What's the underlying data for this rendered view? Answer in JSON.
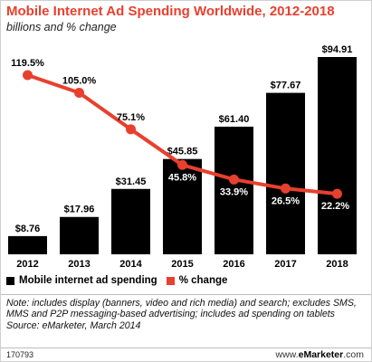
{
  "header": {
    "title": "Mobile Internet Ad Spending Worldwide, 2012-2018",
    "subtitle": "billions and % change"
  },
  "legend": {
    "bar_label": "Mobile internet ad spending",
    "line_label": "% change"
  },
  "note": "Note: includes display (banners, video and rich media) and search; excludes SMS, MMS and P2P messaging-based advertising; includes ad spending on tablets",
  "source": "Source: eMarketer, March 2014",
  "chart_id": "170793",
  "brand": {
    "prefix": "www.",
    "name": "eMarketer",
    "suffix": ".com"
  },
  "colors": {
    "bar": "#000000",
    "line": "#e8402e",
    "title": "#e8402e"
  },
  "chart_data": {
    "type": "bar",
    "title": "Mobile Internet Ad Spending Worldwide, 2012-2018",
    "subtitle": "billions and % change",
    "categories": [
      "2012",
      "2013",
      "2014",
      "2015",
      "2016",
      "2017",
      "2018"
    ],
    "series": [
      {
        "name": "Mobile internet ad spending",
        "type": "bar",
        "values": [
          8.76,
          17.96,
          31.45,
          45.85,
          61.4,
          77.67,
          94.91
        ],
        "labels": [
          "$8.76",
          "$17.96",
          "$31.45",
          "$45.85",
          "$61.40",
          "$77.67",
          "$94.91"
        ]
      },
      {
        "name": "% change",
        "type": "line",
        "values": [
          119.5,
          105.0,
          75.1,
          45.8,
          33.9,
          26.5,
          22.2
        ],
        "labels": [
          "119.5%",
          "105.0%",
          "75.1%",
          "45.8%",
          "33.9%",
          "26.5%",
          "22.2%"
        ]
      }
    ],
    "grid": false,
    "legend_position": "bottom-left"
  }
}
